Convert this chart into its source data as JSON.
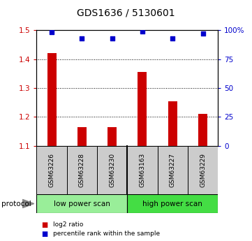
{
  "title": "GDS1636 / 5130601",
  "samples": [
    "GSM63226",
    "GSM63228",
    "GSM63230",
    "GSM63163",
    "GSM63227",
    "GSM63229"
  ],
  "log2_ratios": [
    1.42,
    1.165,
    1.165,
    1.355,
    1.255,
    1.21
  ],
  "percentile_ranks": [
    98,
    93,
    93,
    99,
    93,
    97
  ],
  "bar_color": "#cc0000",
  "dot_color": "#0000cc",
  "ylim": [
    1.1,
    1.5
  ],
  "yticks_left": [
    1.1,
    1.2,
    1.3,
    1.4,
    1.5
  ],
  "yticks_right": [
    0,
    25,
    50,
    75,
    100
  ],
  "groups": [
    {
      "label": "low power scan",
      "samples": [
        0,
        1,
        2
      ],
      "color": "#99ee99"
    },
    {
      "label": "high power scan",
      "samples": [
        3,
        4,
        5
      ],
      "color": "#44dd44"
    }
  ],
  "legend_items": [
    {
      "color": "#cc0000",
      "label": "log2 ratio"
    },
    {
      "color": "#0000cc",
      "label": "percentile rank within the sample"
    }
  ]
}
